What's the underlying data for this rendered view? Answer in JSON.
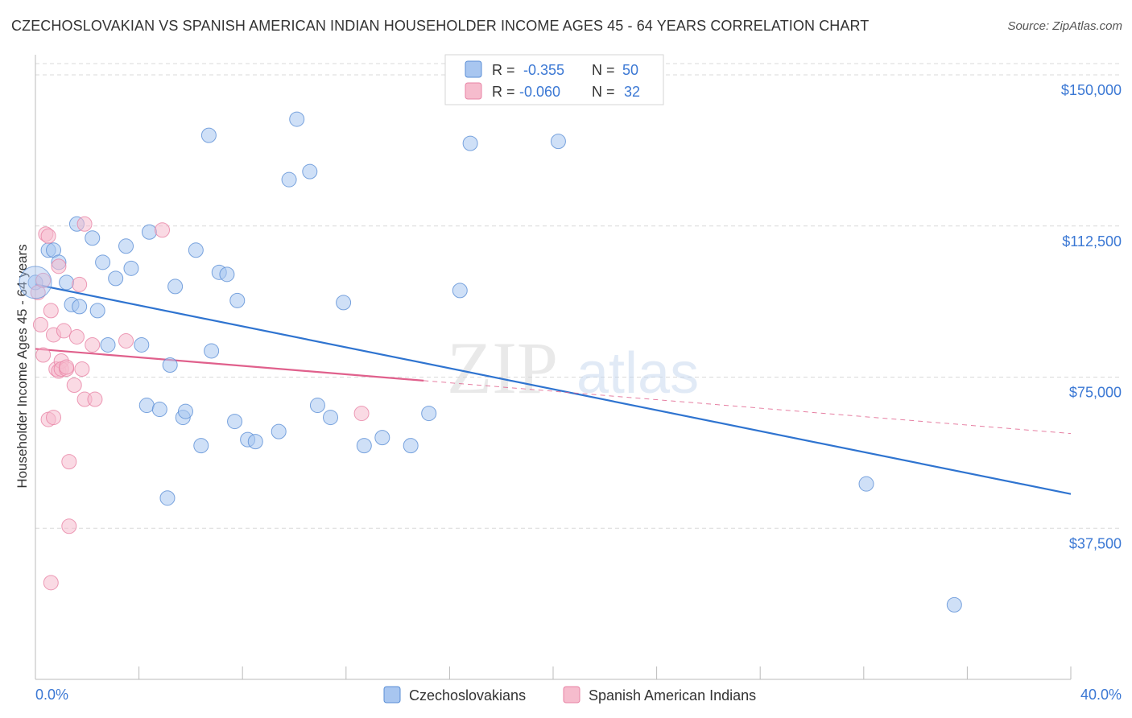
{
  "title": "CZECHOSLOVAKIAN VS SPANISH AMERICAN INDIAN HOUSEHOLDER INCOME AGES 45 - 64 YEARS CORRELATION CHART",
  "source": "Source: ZipAtlas.com",
  "watermark": {
    "zip": "ZIP",
    "atlas": "atlas"
  },
  "colors": {
    "blue": "#a8c6f0",
    "blue_stroke": "#5b8fd6",
    "blue_line": "#2f74d0",
    "pink": "#f6bccd",
    "pink_stroke": "#e883a5",
    "pink_line": "#e0608c",
    "axis_text": "#3b78d4",
    "grid": "#d9d9d9"
  },
  "legend": [
    {
      "r_label": "R =",
      "r_value": "-0.355",
      "n_label": "N =",
      "n_value": "50"
    },
    {
      "r_label": "R =",
      "r_value": "-0.060",
      "n_label": "N =",
      "n_value": "32"
    }
  ],
  "chart_data": {
    "type": "scatter",
    "xlabel": "",
    "ylabel": "Householder Income Ages 45 - 64 years",
    "xlim": [
      0,
      40
    ],
    "ylim": [
      0,
      152000
    ],
    "x_tick_labels": [
      "0.0%",
      "40.0%"
    ],
    "y_ticks": [
      37500,
      75000,
      112500,
      150000
    ],
    "y_tick_labels": [
      "$37,500",
      "$75,000",
      "$112,500",
      "$150,000"
    ],
    "legend_bottom": [
      "Czechoslovakians",
      "Spanish American Indians"
    ],
    "series": [
      {
        "name": "Czechoslovakians",
        "color": "blue",
        "trend": {
          "x": [
            0,
            40
          ],
          "y": [
            98000,
            46000
          ],
          "dashed_after": null
        },
        "points": [
          [
            0.0,
            98500
          ],
          [
            0.5,
            106500
          ],
          [
            0.7,
            106500
          ],
          [
            0.9,
            103500
          ],
          [
            1.2,
            98500
          ],
          [
            1.4,
            93000
          ],
          [
            1.7,
            92500
          ],
          [
            1.6,
            113000
          ],
          [
            2.2,
            109500
          ],
          [
            2.4,
            91500
          ],
          [
            2.6,
            103500
          ],
          [
            2.8,
            83000
          ],
          [
            3.1,
            99500
          ],
          [
            3.5,
            107500
          ],
          [
            3.7,
            102000
          ],
          [
            4.1,
            83000
          ],
          [
            4.3,
            68000
          ],
          [
            4.4,
            111000
          ],
          [
            4.8,
            67000
          ],
          [
            5.1,
            45000
          ],
          [
            5.2,
            78000
          ],
          [
            5.4,
            97500
          ],
          [
            5.7,
            65000
          ],
          [
            5.8,
            66500
          ],
          [
            6.2,
            106500
          ],
          [
            6.4,
            58000
          ],
          [
            6.8,
            81500
          ],
          [
            6.7,
            135000
          ],
          [
            7.1,
            101000
          ],
          [
            7.4,
            100500
          ],
          [
            7.7,
            64000
          ],
          [
            7.8,
            94000
          ],
          [
            8.2,
            59500
          ],
          [
            8.5,
            59000
          ],
          [
            9.4,
            61500
          ],
          [
            9.8,
            124000
          ],
          [
            10.1,
            139000
          ],
          [
            10.6,
            126000
          ],
          [
            10.9,
            68000
          ],
          [
            11.4,
            65000
          ],
          [
            11.9,
            93500
          ],
          [
            12.7,
            58000
          ],
          [
            13.4,
            60000
          ],
          [
            14.5,
            58000
          ],
          [
            15.2,
            66000
          ],
          [
            16.4,
            96500
          ],
          [
            16.8,
            133000
          ],
          [
            20.2,
            133500
          ],
          [
            32.1,
            48500
          ],
          [
            35.5,
            18500
          ]
        ]
      },
      {
        "name": "Spanish American Indians",
        "color": "pink",
        "trend": {
          "x": [
            0,
            40
          ],
          "y": [
            82000,
            61000
          ],
          "solid_until_x": 15
        },
        "points": [
          [
            0.1,
            96000
          ],
          [
            0.2,
            88000
          ],
          [
            0.3,
            99000
          ],
          [
            0.3,
            80500
          ],
          [
            0.4,
            110500
          ],
          [
            0.5,
            110000
          ],
          [
            0.5,
            64500
          ],
          [
            0.6,
            24000
          ],
          [
            0.6,
            91500
          ],
          [
            0.7,
            85500
          ],
          [
            0.7,
            65000
          ],
          [
            0.8,
            77000
          ],
          [
            0.9,
            76500
          ],
          [
            0.9,
            102500
          ],
          [
            1.0,
            79000
          ],
          [
            1.0,
            77000
          ],
          [
            1.1,
            86500
          ],
          [
            1.2,
            77000
          ],
          [
            1.2,
            77500
          ],
          [
            1.3,
            54000
          ],
          [
            1.3,
            38000
          ],
          [
            1.5,
            73000
          ],
          [
            1.6,
            85000
          ],
          [
            1.7,
            98000
          ],
          [
            1.8,
            77000
          ],
          [
            1.9,
            69500
          ],
          [
            1.9,
            113000
          ],
          [
            2.2,
            83000
          ],
          [
            2.3,
            69500
          ],
          [
            3.5,
            84000
          ],
          [
            4.9,
            111500
          ],
          [
            12.6,
            66000
          ]
        ]
      }
    ]
  }
}
